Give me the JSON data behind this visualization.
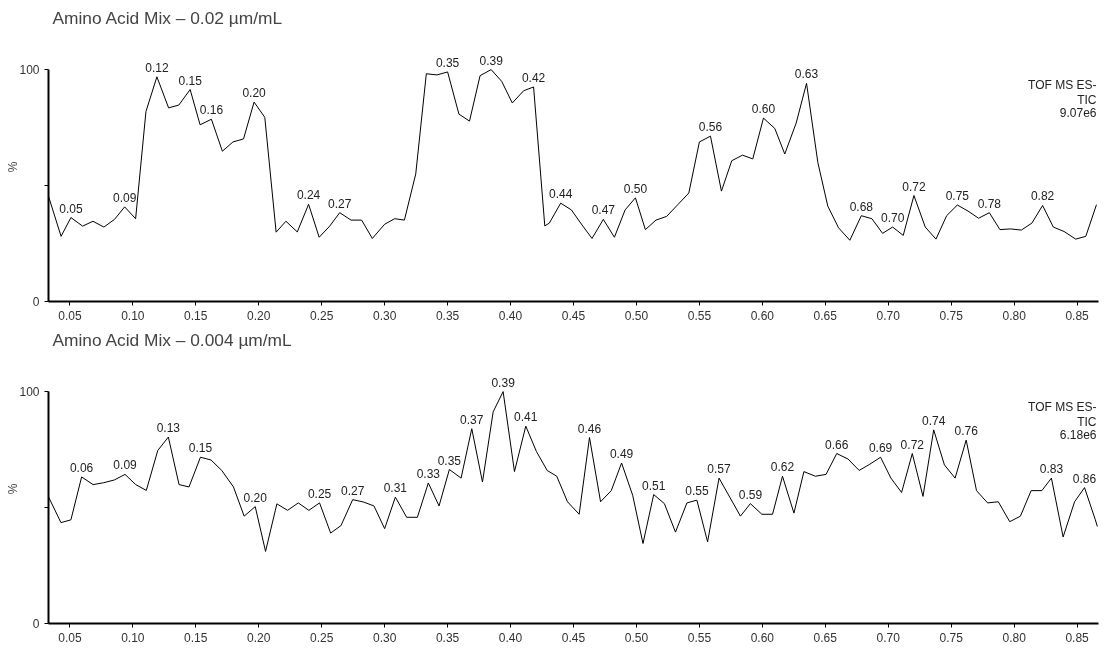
{
  "chart_data": [
    {
      "type": "line",
      "title": "Amino Acid Mix – 0.02 µm/mL",
      "ylabel": "%",
      "color": "#000000",
      "x": [
        0.0331,
        0.043,
        0.0508,
        0.0601,
        0.0683,
        0.077,
        0.0854,
        0.0935,
        0.1022,
        0.1104,
        0.1191,
        0.1284,
        0.1365,
        0.1455,
        0.1534,
        0.1624,
        0.1711,
        0.1795,
        0.1879,
        0.1963,
        0.2048,
        0.2138,
        0.2216,
        0.2306,
        0.2396,
        0.248,
        0.2565,
        0.2643,
        0.2733,
        0.2817,
        0.2902,
        0.3,
        0.3079,
        0.3157,
        0.3247,
        0.3331,
        0.3416,
        0.35,
        0.359,
        0.3674,
        0.3758,
        0.3846,
        0.393,
        0.4014,
        0.4104,
        0.4183,
        0.4272,
        0.4308,
        0.4398,
        0.4483,
        0.4568,
        0.4647,
        0.4737,
        0.4825,
        0.491,
        0.4992,
        0.5071,
        0.5155,
        0.524,
        0.5331,
        0.5416,
        0.55,
        0.5588,
        0.5675,
        0.5757,
        0.5842,
        0.5924,
        0.6009,
        0.6099,
        0.6178,
        0.6269,
        0.6351,
        0.6441,
        0.652,
        0.6605,
        0.6695,
        0.6786,
        0.687,
        0.6955,
        0.7035,
        0.7119,
        0.7204,
        0.7294,
        0.7379,
        0.7464,
        0.7549,
        0.7633,
        0.7718,
        0.7803,
        0.7887,
        0.7972,
        0.8057,
        0.8141,
        0.8226,
        0.8311,
        0.8396,
        0.8489,
        0.8569,
        0.8653
      ],
      "values": [
        45.2,
        28.1,
        36.2,
        32.5,
        34.6,
        32.1,
        35.4,
        40.8,
        35.7,
        81.9,
        96.9,
        83.5,
        84.7,
        91.4,
        76.2,
        78.6,
        64.8,
        68.8,
        70.1,
        86.0,
        79.4,
        29.9,
        34.6,
        30.0,
        41.9,
        27.7,
        32.6,
        38.3,
        35.1,
        35.1,
        27.2,
        33.3,
        35.7,
        35.1,
        55.0,
        98.2,
        97.7,
        99.0,
        80.8,
        77.8,
        97.4,
        100,
        94.9,
        85.6,
        90.9,
        92.5,
        32.6,
        33.8,
        42.4,
        39.5,
        33.0,
        27.2,
        35.4,
        27.7,
        39.5,
        44.7,
        31.0,
        35.1,
        36.7,
        41.9,
        46.8,
        68.8,
        71.3,
        47.6,
        60.7,
        63.1,
        61.5,
        79.1,
        74.6,
        63.6,
        77.0,
        94.1,
        59.9,
        41.1,
        31.8,
        26.4,
        37.0,
        35.7,
        29.4,
        32.1,
        28.5,
        45.7,
        32.1,
        26.9,
        37.0,
        41.6,
        39.0,
        35.9,
        38.3,
        31.0,
        31.3,
        30.8,
        33.8,
        41.4,
        32.1,
        30.2,
        26.9,
        28.1,
        41.6
      ],
      "xlim": [
        0.033,
        0.867
      ],
      "xticks": [
        {
          "value": 0.05,
          "label": "0.05"
        },
        {
          "value": 0.1,
          "label": "0.10"
        },
        {
          "value": 0.15,
          "label": "0.15"
        },
        {
          "value": 0.2,
          "label": "0.20"
        },
        {
          "value": 0.25,
          "label": "0.25"
        },
        {
          "value": 0.3,
          "label": "0.30"
        },
        {
          "value": 0.35,
          "label": "0.35"
        },
        {
          "value": 0.4,
          "label": "0.40"
        },
        {
          "value": 0.45,
          "label": "0.45"
        },
        {
          "value": 0.5,
          "label": "0.50"
        },
        {
          "value": 0.55,
          "label": "0.55"
        },
        {
          "value": 0.6,
          "label": "0.60"
        },
        {
          "value": 0.65,
          "label": "0.65"
        },
        {
          "value": 0.7,
          "label": "0.70"
        },
        {
          "value": 0.75,
          "label": "0.75"
        },
        {
          "value": 0.8,
          "label": "0.80"
        },
        {
          "value": 0.85,
          "label": "0.85"
        }
      ],
      "ylim": [
        0,
        100
      ],
      "yticks": [
        0,
        {
          "value": 50,
          "label": null
        },
        100
      ],
      "annotations": [
        {
          "text": "0.05",
          "x": 0.0508,
          "y": 36.2
        },
        {
          "text": "0.09",
          "x": 0.0935,
          "y": 40.8
        },
        {
          "text": "0.12",
          "x": 0.1191,
          "y": 96.9
        },
        {
          "text": "0.15",
          "x": 0.1455,
          "y": 91.4
        },
        {
          "text": "0.16",
          "x": 0.1624,
          "y": 78.6
        },
        {
          "text": "0.20",
          "x": 0.1963,
          "y": 86.0
        },
        {
          "text": "0.24",
          "x": 0.2396,
          "y": 41.9
        },
        {
          "text": "0.27",
          "x": 0.2643,
          "y": 38.3
        },
        {
          "text": "0.35",
          "x": 0.35,
          "y": 99.0
        },
        {
          "text": "0.39",
          "x": 0.3846,
          "y": 100
        },
        {
          "text": "0.42",
          "x": 0.4183,
          "y": 92.5
        },
        {
          "text": "0.44",
          "x": 0.4398,
          "y": 42.4
        },
        {
          "text": "0.47",
          "x": 0.4737,
          "y": 35.4
        },
        {
          "text": "0.50",
          "x": 0.4992,
          "y": 44.7
        },
        {
          "text": "0.56",
          "x": 0.5588,
          "y": 71.3
        },
        {
          "text": "0.60",
          "x": 0.6009,
          "y": 79.1
        },
        {
          "text": "0.63",
          "x": 0.6351,
          "y": 94.1
        },
        {
          "text": "0.68",
          "x": 0.6786,
          "y": 37.0
        },
        {
          "text": "0.70",
          "x": 0.7035,
          "y": 32.1
        },
        {
          "text": "0.72",
          "x": 0.7204,
          "y": 45.7
        },
        {
          "text": "0.75",
          "x": 0.7549,
          "y": 41.6
        },
        {
          "text": "0.78",
          "x": 0.7803,
          "y": 38.3
        },
        {
          "text": "0.82",
          "x": 0.8226,
          "y": 41.4
        },
        "TOF MS ES-",
        "TIC",
        "9.07e6"
      ]
    },
    {
      "type": "line",
      "title": "Amino Acid Mix – 0.004 µm/mL",
      "ylabel": "%",
      "color": "#000000",
      "x": [
        0.0331,
        0.0429,
        0.0508,
        0.0593,
        0.0684,
        0.0768,
        0.0853,
        0.0938,
        0.1023,
        0.1107,
        0.1198,
        0.1282,
        0.1367,
        0.1446,
        0.1537,
        0.1621,
        0.1706,
        0.1799,
        0.1884,
        0.1972,
        0.2054,
        0.2144,
        0.2229,
        0.2314,
        0.2398,
        0.2483,
        0.2571,
        0.2653,
        0.2746,
        0.2831,
        0.2915,
        0.3,
        0.3085,
        0.3175,
        0.326,
        0.3347,
        0.3432,
        0.3514,
        0.3607,
        0.3692,
        0.3777,
        0.3862,
        0.3941,
        0.4031,
        0.4121,
        0.4206,
        0.4291,
        0.4367,
        0.4452,
        0.4545,
        0.4627,
        0.4715,
        0.48,
        0.4882,
        0.497,
        0.5052,
        0.5137,
        0.5222,
        0.531,
        0.5401,
        0.548,
        0.5565,
        0.5656,
        0.5741,
        0.5826,
        0.5905,
        0.5996,
        0.6081,
        0.616,
        0.6251,
        0.633,
        0.6421,
        0.6506,
        0.6591,
        0.6681,
        0.6769,
        0.6854,
        0.6939,
        0.7021,
        0.7106,
        0.7191,
        0.7276,
        0.7361,
        0.7446,
        0.7531,
        0.7619,
        0.7701,
        0.7789,
        0.7874,
        0.7965,
        0.805,
        0.8135,
        0.822,
        0.8296,
        0.8389,
        0.848,
        0.8559,
        0.8645,
        0.866
      ],
      "values": [
        54.5,
        43.5,
        44.7,
        63.2,
        59.9,
        60.7,
        61.9,
        64.3,
        59.9,
        57.4,
        74.6,
        80.4,
        59.9,
        58.9,
        71.7,
        70.5,
        66.0,
        58.9,
        46.3,
        50.4,
        31.1,
        51.6,
        48.8,
        52.0,
        48.8,
        52.0,
        39.0,
        42.2,
        53.4,
        52.4,
        50.7,
        40.9,
        54.5,
        45.8,
        45.8,
        60.6,
        50.7,
        66.4,
        62.7,
        84.0,
        61.0,
        91.3,
        100,
        65.5,
        85.1,
        74.1,
        66.0,
        63.5,
        52.5,
        47.1,
        80.2,
        52.5,
        57.3,
        69.2,
        55.3,
        34.5,
        55.6,
        51.7,
        39.4,
        52.0,
        53.2,
        35.2,
        62.7,
        54.5,
        46.3,
        51.7,
        47.1,
        47.1,
        63.5,
        47.6,
        65.5,
        63.5,
        64.3,
        73.3,
        70.9,
        66.0,
        68.7,
        71.7,
        62.7,
        56.5,
        73.3,
        54.8,
        83.5,
        68.4,
        62.7,
        79.1,
        57.3,
        52.0,
        52.5,
        43.9,
        46.3,
        57.3,
        57.3,
        62.7,
        37.3,
        52.5,
        58.6,
        44.7,
        42.0
      ],
      "xlim": [
        0.033,
        0.867
      ],
      "xticks": [
        {
          "value": 0.05,
          "label": "0.05"
        },
        {
          "value": 0.1,
          "label": "0.10"
        },
        {
          "value": 0.15,
          "label": "0.15"
        },
        {
          "value": 0.2,
          "label": "0.20"
        },
        {
          "value": 0.25,
          "label": "0.25"
        },
        {
          "value": 0.3,
          "label": "0.30"
        },
        {
          "value": 0.35,
          "label": "0.35"
        },
        {
          "value": 0.4,
          "label": "0.40"
        },
        {
          "value": 0.45,
          "label": "0.45"
        },
        {
          "value": 0.5,
          "label": "0.50"
        },
        {
          "value": 0.55,
          "label": "0.55"
        },
        {
          "value": 0.6,
          "label": "0.60"
        },
        {
          "value": 0.65,
          "label": "0.65"
        },
        {
          "value": 0.7,
          "label": "0.70"
        },
        {
          "value": 0.75,
          "label": "0.75"
        },
        {
          "value": 0.8,
          "label": "0.80"
        },
        {
          "value": 0.85,
          "label": "0.85"
        }
      ],
      "ylim": [
        0,
        100
      ],
      "yticks": [
        0,
        {
          "value": 50,
          "label": null
        },
        100
      ],
      "annotations": [
        {
          "text": "0.06",
          "x": 0.0593,
          "y": 63.2
        },
        {
          "text": "0.09",
          "x": 0.0938,
          "y": 64.3
        },
        {
          "text": "0.13",
          "x": 0.1282,
          "y": 80.4
        },
        {
          "text": "0.15",
          "x": 0.1537,
          "y": 71.7
        },
        {
          "text": "0.20",
          "x": 0.1972,
          "y": 50.4
        },
        {
          "text": "0.25",
          "x": 0.2483,
          "y": 52.0
        },
        {
          "text": "0.27",
          "x": 0.2746,
          "y": 53.4
        },
        {
          "text": "0.31",
          "x": 0.3085,
          "y": 54.5
        },
        {
          "text": "0.33",
          "x": 0.3347,
          "y": 60.6
        },
        {
          "text": "0.35",
          "x": 0.3514,
          "y": 66.4
        },
        {
          "text": "0.37",
          "x": 0.3692,
          "y": 84.0
        },
        {
          "text": "0.39",
          "x": 0.3941,
          "y": 100
        },
        {
          "text": "0.41",
          "x": 0.4121,
          "y": 85.1
        },
        {
          "text": "0.46",
          "x": 0.4627,
          "y": 80.2
        },
        {
          "text": "0.49",
          "x": 0.4882,
          "y": 69.2
        },
        {
          "text": "0.51",
          "x": 0.5137,
          "y": 55.6
        },
        {
          "text": "0.55",
          "x": 0.548,
          "y": 53.2
        },
        {
          "text": "0.57",
          "x": 0.5656,
          "y": 62.7
        },
        {
          "text": "0.59",
          "x": 0.5905,
          "y": 51.7
        },
        {
          "text": "0.62",
          "x": 0.616,
          "y": 63.5
        },
        {
          "text": "0.66",
          "x": 0.6591,
          "y": 73.3
        },
        {
          "text": "0.69",
          "x": 0.6939,
          "y": 71.7
        },
        {
          "text": "0.72",
          "x": 0.7191,
          "y": 73.3
        },
        {
          "text": "0.74",
          "x": 0.7361,
          "y": 83.5
        },
        {
          "text": "0.76",
          "x": 0.7619,
          "y": 79.1
        },
        {
          "text": "0.83",
          "x": 0.8296,
          "y": 62.7
        },
        {
          "text": "0.86",
          "x": 0.8559,
          "y": 58.6
        },
        "TOF MS ES-",
        "TIC",
        "6.18e6"
      ]
    }
  ]
}
